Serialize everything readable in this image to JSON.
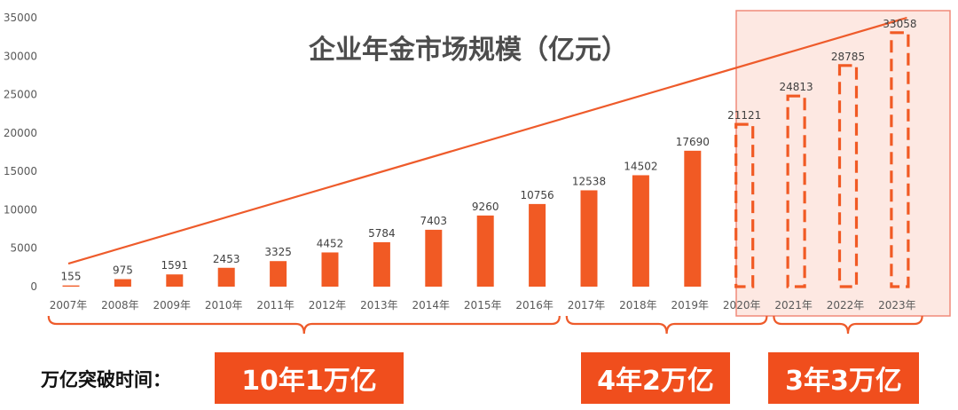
{
  "chart_data": {
    "type": "bar",
    "title": "企业年金市场规模（亿元）",
    "categories": [
      "2007年",
      "2008年",
      "2009年",
      "2010年",
      "2011年",
      "2012年",
      "2013年",
      "2014年",
      "2015年",
      "2016年",
      "2017年",
      "2018年",
      "2019年",
      "2020年",
      "2021年",
      "2022年",
      "2023年"
    ],
    "series": [
      {
        "values": [
          155,
          975,
          1591,
          2453,
          3325,
          4452,
          5784,
          7403,
          9260,
          10756,
          12538,
          14502,
          17690,
          21121,
          24813,
          28785,
          33058
        ]
      }
    ],
    "data_labels": [
      "155",
      "975",
      "1591",
      "2453",
      "3325",
      "4452",
      "5784",
      "7403",
      "9260",
      "10756",
      "12538",
      "14502",
      "17690",
      "21121",
      "24813",
      "28785",
      "33058"
    ],
    "highlighted_categories": [
      "2020年",
      "2021年",
      "2022年",
      "2023年"
    ],
    "highlighted_style": "dashed outline",
    "yticks": [
      "0",
      "5000",
      "10000",
      "15000",
      "20000",
      "25000",
      "30000",
      "35000"
    ],
    "ylim": [
      0,
      35000
    ],
    "grid": false,
    "trend_line": {
      "from": {
        "x": "2007年",
        "y": 3000
      },
      "to": {
        "x": "2023年",
        "y": 35000
      }
    },
    "colors": {
      "bar": "#f15a24",
      "line": "#ee5b2b",
      "highlight_fill": "#fde8e2",
      "highlight_border": "#f08a7a",
      "axis_text": "#595959",
      "label_text": "#404040",
      "title": "#4d4d4d"
    }
  },
  "milestones": {
    "lead": "万亿突破时间：",
    "items": [
      {
        "label": "10年1万亿",
        "from": "2007年",
        "to": "2016年"
      },
      {
        "label": "4年2万亿",
        "from": "2017年",
        "to": "2020年"
      },
      {
        "label": "3年3万亿",
        "from": "2021年",
        "to": "2023年"
      }
    ]
  }
}
